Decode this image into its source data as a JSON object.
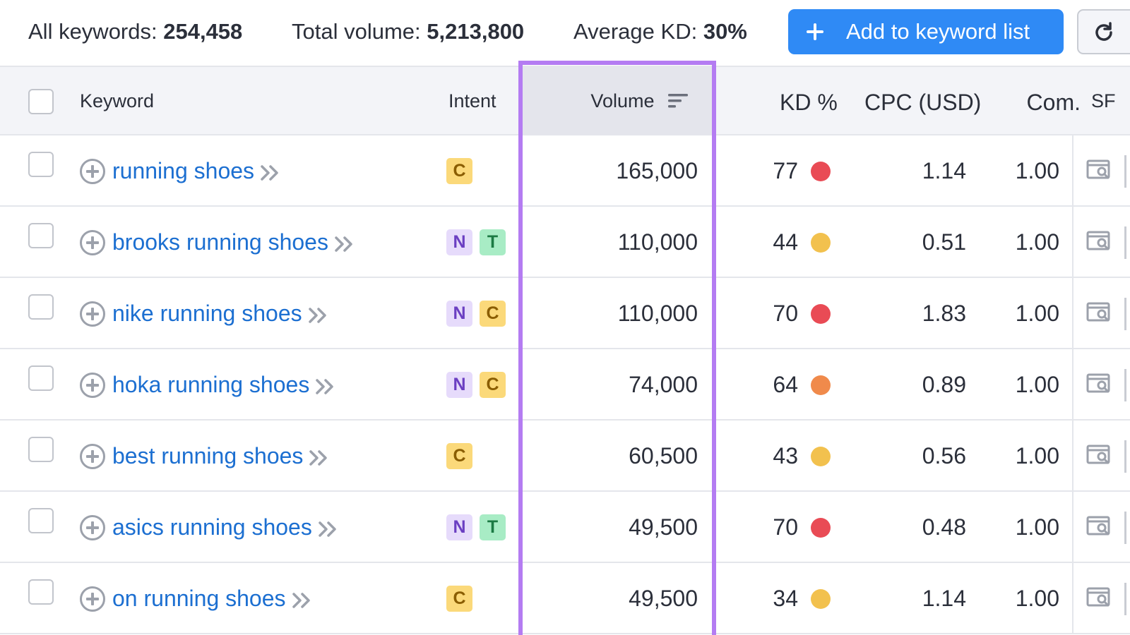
{
  "summary": {
    "all_keywords_label": "All keywords:",
    "all_keywords_value": "254,458",
    "total_volume_label": "Total volume:",
    "total_volume_value": "5,213,800",
    "average_kd_label": "Average KD:",
    "average_kd_value": "30%"
  },
  "toolbar": {
    "add_label": "Add to keyword list",
    "refresh_icon": "refresh-icon"
  },
  "colors": {
    "accent": "#2f8af5",
    "highlight": "#b47cf2",
    "kd_red": "#e94b55",
    "kd_orange": "#f08a4b",
    "kd_yellow": "#f2c14e"
  },
  "table": {
    "headers": {
      "keyword": "Keyword",
      "intent": "Intent",
      "volume": "Volume",
      "kd": "KD %",
      "cpc": "CPC (USD)",
      "com": "Com.",
      "sf": "SF"
    },
    "rows": [
      {
        "keyword": "running shoes",
        "intents": [
          "C"
        ],
        "volume": "165,000",
        "kd": "77",
        "kd_level": "red",
        "cpc": "1.14",
        "com": "1.00"
      },
      {
        "keyword": "brooks running shoes",
        "intents": [
          "N",
          "T"
        ],
        "volume": "110,000",
        "kd": "44",
        "kd_level": "yellow",
        "cpc": "0.51",
        "com": "1.00"
      },
      {
        "keyword": "nike running shoes",
        "intents": [
          "N",
          "C"
        ],
        "volume": "110,000",
        "kd": "70",
        "kd_level": "red",
        "cpc": "1.83",
        "com": "1.00"
      },
      {
        "keyword": "hoka running shoes",
        "intents": [
          "N",
          "C"
        ],
        "volume": "74,000",
        "kd": "64",
        "kd_level": "orange",
        "cpc": "0.89",
        "com": "1.00"
      },
      {
        "keyword": "best running shoes",
        "intents": [
          "C"
        ],
        "volume": "60,500",
        "kd": "43",
        "kd_level": "yellow",
        "cpc": "0.56",
        "com": "1.00"
      },
      {
        "keyword": "asics running shoes",
        "intents": [
          "N",
          "T"
        ],
        "volume": "49,500",
        "kd": "70",
        "kd_level": "red",
        "cpc": "0.48",
        "com": "1.00"
      },
      {
        "keyword": "on running shoes",
        "intents": [
          "C"
        ],
        "volume": "49,500",
        "kd": "34",
        "kd_level": "yellow",
        "cpc": "1.14",
        "com": "1.00"
      }
    ]
  }
}
